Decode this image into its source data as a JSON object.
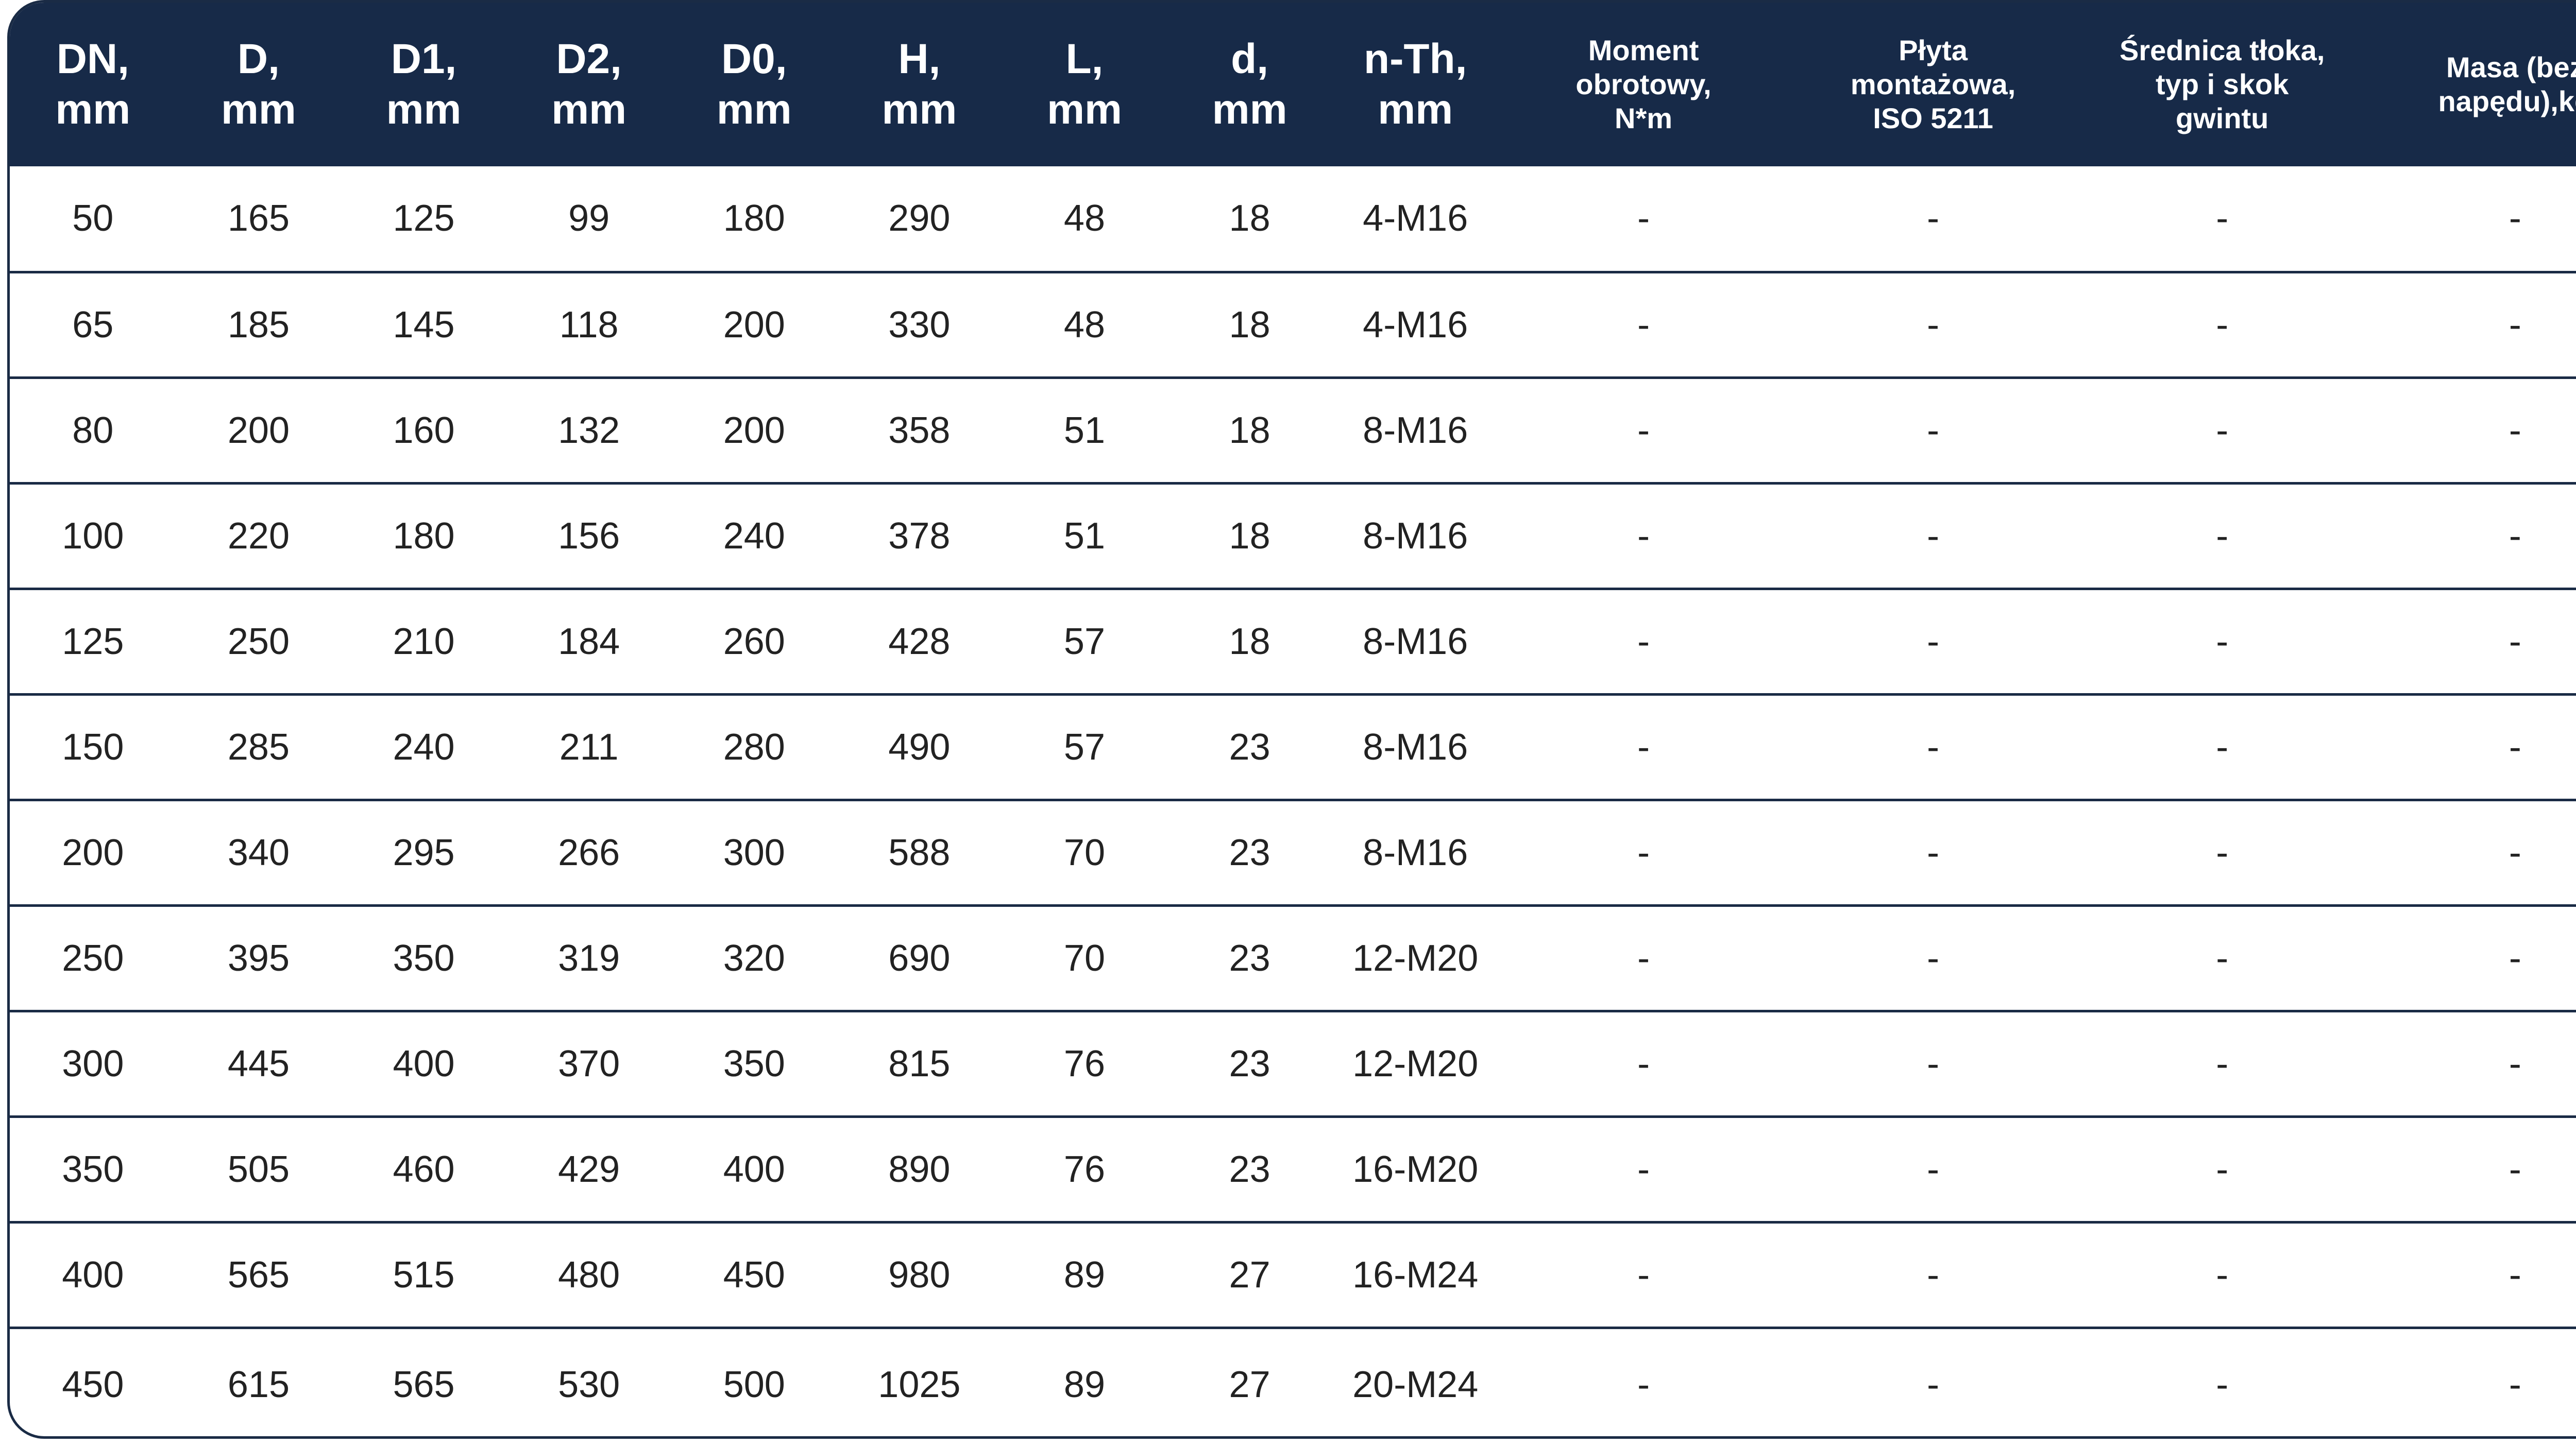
{
  "columns": [
    "DN,\nmm",
    "D,\nmm",
    "D1,\nmm",
    "D2,\nmm",
    "D0,\nmm",
    "H,\nmm",
    "L,\nmm",
    "d,\nmm",
    "n-Th,\nmm",
    "Moment\nobrotowy,\nN*m",
    "Płyta\nmontażowa,\nISO 5211",
    "Średnica tłoka,\ntyp i skok\ngwintu",
    "Masa (bez\nnapędu),kg"
  ],
  "rows": [
    [
      "50",
      "165",
      "125",
      "99",
      "180",
      "290",
      "48",
      "18",
      "4-M16",
      "-",
      "-",
      "-",
      "-"
    ],
    [
      "65",
      "185",
      "145",
      "118",
      "200",
      "330",
      "48",
      "18",
      "4-M16",
      "-",
      "-",
      "-",
      "-"
    ],
    [
      "80",
      "200",
      "160",
      "132",
      "200",
      "358",
      "51",
      "18",
      "8-M16",
      "-",
      "-",
      "-",
      "-"
    ],
    [
      "100",
      "220",
      "180",
      "156",
      "240",
      "378",
      "51",
      "18",
      "8-M16",
      "-",
      "-",
      "-",
      "-"
    ],
    [
      "125",
      "250",
      "210",
      "184",
      "260",
      "428",
      "57",
      "18",
      "8-M16",
      "-",
      "-",
      "-",
      "-"
    ],
    [
      "150",
      "285",
      "240",
      "211",
      "280",
      "490",
      "57",
      "23",
      "8-M16",
      "-",
      "-",
      "-",
      "-"
    ],
    [
      "200",
      "340",
      "295",
      "266",
      "300",
      "588",
      "70",
      "23",
      "8-M16",
      "-",
      "-",
      "-",
      "-"
    ],
    [
      "250",
      "395",
      "350",
      "319",
      "320",
      "690",
      "70",
      "23",
      "12-M20",
      "-",
      "-",
      "-",
      "-"
    ],
    [
      "300",
      "445",
      "400",
      "370",
      "350",
      "815",
      "76",
      "23",
      "12-M20",
      "-",
      "-",
      "-",
      "-"
    ],
    [
      "350",
      "505",
      "460",
      "429",
      "400",
      "890",
      "76",
      "23",
      "16-M20",
      "-",
      "-",
      "-",
      "-"
    ],
    [
      "400",
      "565",
      "515",
      "480",
      "450",
      "980",
      "89",
      "27",
      "16-M24",
      "-",
      "-",
      "-",
      "-"
    ],
    [
      "450",
      "615",
      "565",
      "530",
      "500",
      "1025",
      "89",
      "27",
      "20-M24",
      "-",
      "-",
      "-",
      "-"
    ]
  ],
  "colors": {
    "header_bg": "#172a48",
    "border": "#1a2b45",
    "text": "#222222"
  }
}
